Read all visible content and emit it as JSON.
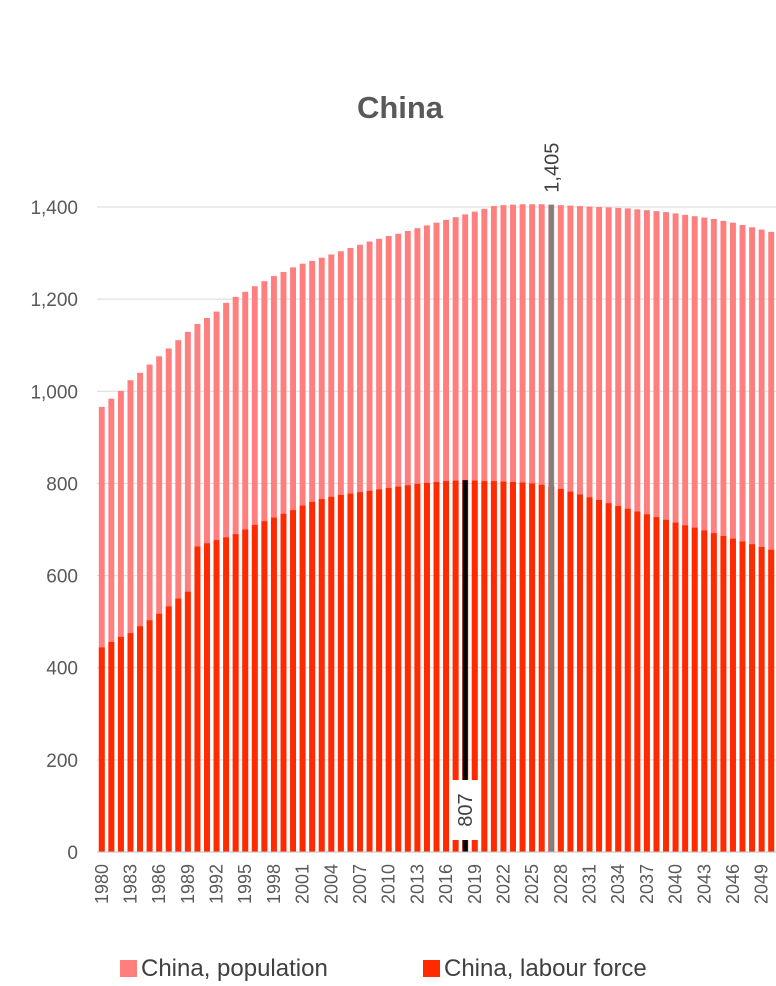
{
  "chart_data": {
    "type": "bar",
    "title": "China",
    "xlabel": "",
    "ylabel": "",
    "ylim": [
      0,
      1400
    ],
    "yticks": [
      "0",
      "200",
      "400",
      "600",
      "800",
      "1,000",
      "1,200",
      "1,400"
    ],
    "grid": true,
    "legend_position": "bottom",
    "categories": [
      "1980",
      "1981",
      "1982",
      "1983",
      "1984",
      "1985",
      "1986",
      "1987",
      "1988",
      "1989",
      "1990",
      "1991",
      "1992",
      "1993",
      "1994",
      "1995",
      "1996",
      "1997",
      "1998",
      "1999",
      "2000",
      "2001",
      "2002",
      "2003",
      "2004",
      "2005",
      "2006",
      "2007",
      "2008",
      "2009",
      "2010",
      "2011",
      "2012",
      "2013",
      "2014",
      "2015",
      "2016",
      "2017",
      "2018",
      "2019",
      "2020",
      "2021",
      "2022",
      "2023",
      "2024",
      "2025",
      "2026",
      "2027",
      "2028",
      "2029",
      "2030",
      "2031",
      "2032",
      "2033",
      "2034",
      "2035",
      "2036",
      "2037",
      "2038",
      "2039",
      "2040",
      "2041",
      "2042",
      "2043",
      "2044",
      "2045",
      "2046",
      "2047",
      "2048",
      "2049",
      "2050"
    ],
    "series": [
      {
        "name": "China, population",
        "color": "#FF7F7F",
        "values": [
          966,
          984,
          1001,
          1024,
          1040,
          1058,
          1076,
          1093,
          1111,
          1129,
          1146,
          1159,
          1173,
          1192,
          1205,
          1216,
          1228,
          1239,
          1250,
          1259,
          1269,
          1277,
          1283,
          1290,
          1297,
          1304,
          1311,
          1318,
          1325,
          1331,
          1337,
          1342,
          1348,
          1354,
          1360,
          1366,
          1372,
          1378,
          1384,
          1390,
          1396,
          1402,
          1404,
          1405,
          1406,
          1406,
          1406,
          1405,
          1404,
          1403,
          1402,
          1401,
          1400,
          1399,
          1398,
          1397,
          1395,
          1393,
          1391,
          1389,
          1386,
          1383,
          1380,
          1377,
          1374,
          1370,
          1366,
          1361,
          1356,
          1351,
          1346
        ]
      },
      {
        "name": "China, labour force",
        "color": "#FF2A00",
        "values": [
          444,
          456,
          467,
          475,
          490,
          503,
          517,
          533,
          550,
          565,
          663,
          670,
          677,
          683,
          690,
          700,
          710,
          718,
          726,
          734,
          742,
          752,
          760,
          766,
          771,
          775,
          778,
          781,
          784,
          787,
          790,
          793,
          796,
          799,
          801,
          803,
          805,
          806,
          807,
          806,
          805,
          805,
          804,
          803,
          802,
          800,
          797,
          793,
          788,
          782,
          776,
          770,
          764,
          757,
          751,
          745,
          739,
          733,
          727,
          721,
          715,
          709,
          704,
          698,
          692,
          686,
          680,
          674,
          668,
          662,
          656
        ]
      }
    ],
    "annotations": [
      {
        "category": "2018",
        "label": "807",
        "color": "#000000",
        "series": "China, labour force"
      },
      {
        "category": "2027",
        "label": "1,405",
        "color": "#808080",
        "series": "China, population"
      }
    ]
  }
}
